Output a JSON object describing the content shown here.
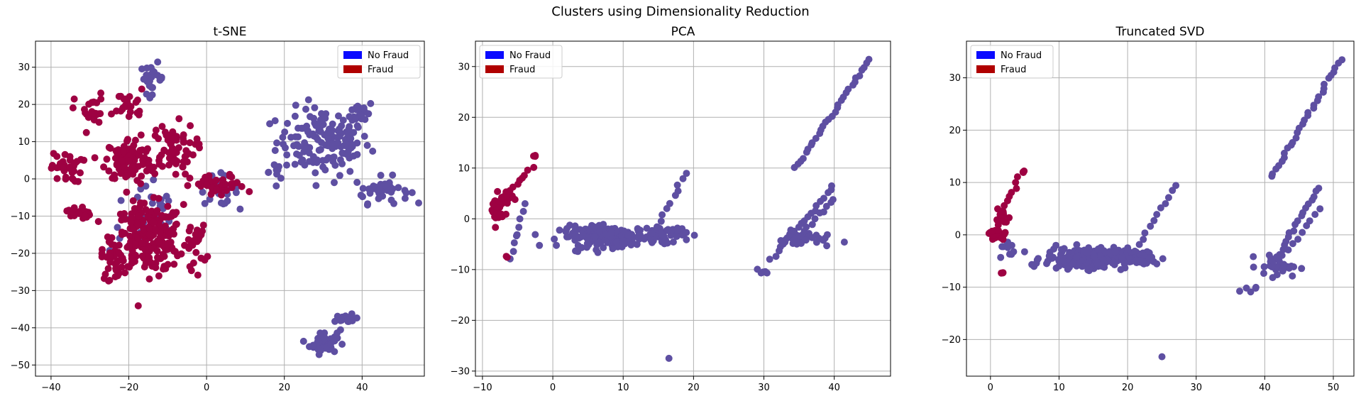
{
  "figure": {
    "suptitle": "Clusters using Dimensionality Reduction"
  },
  "colors": {
    "no_fraud_legend": "#0a0aff",
    "fraud_legend": "#b00000",
    "no_fraud_points": "#5e4fa2",
    "fraud_points": "#9e0142",
    "grid": "#b0b0b0"
  },
  "chart_data": [
    {
      "type": "scatter",
      "title": "t-SNE",
      "xlim": [
        -44,
        56
      ],
      "ylim": [
        -53,
        37
      ],
      "xticks": [
        -40,
        -20,
        0,
        20,
        40
      ],
      "yticks": [
        -50,
        -40,
        -30,
        -20,
        -10,
        0,
        10,
        20,
        30
      ],
      "grid": true,
      "legend": {
        "position": "top-right",
        "entries": [
          "No Fraud",
          "Fraud"
        ]
      },
      "series": [
        {
          "name": "No Fraud",
          "clusters": [
            {
              "cx": 30,
              "cy": 10,
              "rx": 12,
              "ry": 9,
              "n": 150
            },
            {
              "cx": 40,
              "cy": 18,
              "rx": 3,
              "ry": 3,
              "n": 20
            },
            {
              "cx": 45,
              "cy": -3,
              "rx": 7,
              "ry": 3.5,
              "n": 40
            },
            {
              "cx": 30,
              "cy": -44,
              "rx": 3.5,
              "ry": 3,
              "n": 45
            },
            {
              "cx": 36,
              "cy": -38,
              "rx": 3,
              "ry": 1.5,
              "n": 15
            },
            {
              "cx": -14,
              "cy": 27,
              "rx": 3,
              "ry": 4,
              "n": 25
            },
            {
              "cx": 3,
              "cy": -3,
              "rx": 5,
              "ry": 4,
              "n": 25
            },
            {
              "cx": -15,
              "cy": -10,
              "rx": 10,
              "ry": 10,
              "n": 35
            },
            {
              "cx": 18,
              "cy": 2,
              "rx": 2,
              "ry": 7,
              "n": 8
            }
          ]
        },
        {
          "name": "Fraud",
          "clusters": [
            {
              "cx": -15,
              "cy": -16,
              "rx": 9,
              "ry": 9,
              "n": 240
            },
            {
              "cx": -20,
              "cy": 5,
              "rx": 6,
              "ry": 6,
              "n": 100
            },
            {
              "cx": -9,
              "cy": 8,
              "rx": 6,
              "ry": 7,
              "n": 70
            },
            {
              "cx": -36,
              "cy": 3,
              "rx": 4,
              "ry": 4,
              "n": 35
            },
            {
              "cx": -33,
              "cy": -9,
              "rx": 3,
              "ry": 2,
              "n": 20
            },
            {
              "cx": -30,
              "cy": 18,
              "rx": 4,
              "ry": 5,
              "n": 25
            },
            {
              "cx": 3,
              "cy": -2,
              "rx": 7,
              "ry": 3,
              "n": 45
            },
            {
              "cx": -20,
              "cy": 20,
              "rx": 4,
              "ry": 4,
              "n": 25
            },
            {
              "cx": -3,
              "cy": -18,
              "rx": 3,
              "ry": 6,
              "n": 20
            },
            {
              "cx": -24,
              "cy": -22,
              "rx": 3,
              "ry": 5,
              "n": 25
            }
          ]
        }
      ]
    },
    {
      "type": "scatter",
      "title": "PCA",
      "xlim": [
        -11,
        48
      ],
      "ylim": [
        -31,
        35
      ],
      "xticks": [
        -10,
        0,
        10,
        20,
        30,
        40
      ],
      "yticks": [
        -30,
        -20,
        -10,
        0,
        10,
        20,
        30
      ],
      "grid": true,
      "legend": {
        "position": "top-left",
        "entries": [
          "No Fraud",
          "Fraud"
        ]
      },
      "series": [
        {
          "name": "No Fraud",
          "clusters": [
            {
              "cx": 8,
              "cy": -3.5,
              "rx": 7,
              "ry": 2,
              "n": 180
            },
            {
              "cx": 16,
              "cy": -3,
              "rx": 3,
              "ry": 1.6,
              "n": 40
            },
            {
              "cx": 36,
              "cy": -4,
              "rx": 4,
              "ry": 1.6,
              "n": 30
            },
            {
              "cx": 29.5,
              "cy": -10.5,
              "rx": 0.8,
              "ry": 1,
              "n": 5
            },
            {
              "cx": 16.5,
              "cy": -27.5,
              "rx": 0.01,
              "ry": 0.01,
              "n": 1
            }
          ],
          "lines": [
            {
              "x0": 34.5,
              "y0": 10,
              "x1": 45,
              "y1": 31.5,
              "n": 30
            },
            {
              "x0": 31,
              "y0": -8,
              "x1": 40,
              "y1": 6.5,
              "n": 20
            },
            {
              "x0": 14,
              "y0": -4,
              "x1": 19,
              "y1": 9,
              "n": 12
            },
            {
              "x0": 34,
              "y0": -5,
              "x1": 40,
              "y1": 4,
              "n": 12
            },
            {
              "x0": -6,
              "y0": -8,
              "x1": -4,
              "y1": 3,
              "n": 8
            }
          ]
        },
        {
          "name": "Fraud",
          "clusters": [
            {
              "cx": -8,
              "cy": 1.5,
              "rx": 0.9,
              "ry": 3,
              "n": 30
            },
            {
              "cx": -6.5,
              "cy": 4,
              "rx": 1,
              "ry": 2,
              "n": 15
            },
            {
              "cx": -2.5,
              "cy": 12.5,
              "rx": 0.3,
              "ry": 0.3,
              "n": 3
            },
            {
              "cx": -6.5,
              "cy": -7.5,
              "rx": 0.2,
              "ry": 0.3,
              "n": 2
            }
          ],
          "lines": [
            {
              "x0": -8,
              "y0": 3,
              "x1": -3,
              "y1": 10,
              "n": 12
            }
          ]
        }
      ]
    },
    {
      "type": "scatter",
      "title": "Truncated SVD",
      "xlim": [
        -3.5,
        53
      ],
      "ylim": [
        -27,
        37
      ],
      "xticks": [
        0,
        10,
        20,
        30,
        40,
        50
      ],
      "yticks": [
        -20,
        -10,
        0,
        10,
        20,
        30
      ],
      "grid": true,
      "legend": {
        "position": "top-left",
        "entries": [
          "No Fraud",
          "Fraud"
        ]
      },
      "series": [
        {
          "name": "No Fraud",
          "clusters": [
            {
              "cx": 14,
              "cy": -4.5,
              "rx": 6,
              "ry": 2,
              "n": 200
            },
            {
              "cx": 22,
              "cy": -4.5,
              "rx": 3,
              "ry": 1.5,
              "n": 40
            },
            {
              "cx": 42,
              "cy": -6,
              "rx": 3,
              "ry": 2,
              "n": 25
            },
            {
              "cx": 38,
              "cy": -10,
              "rx": 1,
              "ry": 1,
              "n": 5
            },
            {
              "cx": 25,
              "cy": -23.3,
              "rx": 0.01,
              "ry": 0.01,
              "n": 1
            },
            {
              "cx": 2.5,
              "cy": -3,
              "rx": 1,
              "ry": 2,
              "n": 10
            }
          ],
          "lines": [
            {
              "x0": 41,
              "y0": 11,
              "x1": 51,
              "y1": 33.5,
              "n": 30
            },
            {
              "x0": 41,
              "y0": -6,
              "x1": 48,
              "y1": 9,
              "n": 20
            },
            {
              "x0": 21,
              "y0": -3,
              "x1": 27,
              "y1": 9.5,
              "n": 12
            },
            {
              "x0": 42,
              "y0": -5,
              "x1": 48,
              "y1": 5,
              "n": 10
            }
          ]
        },
        {
          "name": "Fraud",
          "clusters": [
            {
              "cx": 1,
              "cy": 0,
              "rx": 1.2,
              "ry": 1,
              "n": 35
            },
            {
              "cx": 2,
              "cy": 3,
              "rx": 1,
              "ry": 2,
              "n": 15
            },
            {
              "cx": 4.8,
              "cy": 12,
              "rx": 0.2,
              "ry": 0.3,
              "n": 3
            },
            {
              "cx": 1.8,
              "cy": -7.3,
              "rx": 0.3,
              "ry": 0.2,
              "n": 3
            }
          ],
          "lines": [
            {
              "x0": 0.5,
              "y0": 1,
              "x1": 4,
              "y1": 11,
              "n": 12
            }
          ]
        }
      ]
    }
  ]
}
